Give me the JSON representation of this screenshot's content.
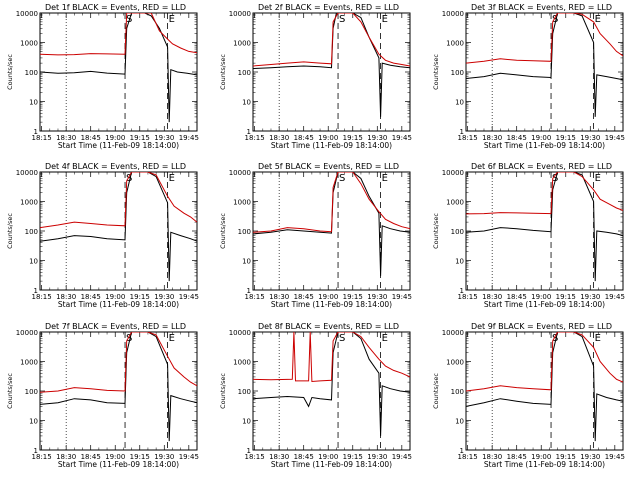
{
  "chart_data": [
    {
      "type": "line",
      "title": "Det 1f BLACK = Events, RED = LLD",
      "xlabel": "Start Time (11-Feb-09 18:14:00)",
      "ylabel": "Counts/sec",
      "x_ticks": [
        "18:15",
        "18:30",
        "18:45",
        "19:00",
        "19:15",
        "19:30",
        "19:45"
      ],
      "y_ticks": [
        "1",
        "10",
        "100",
        "1000",
        "10000"
      ],
      "y_scale": "log",
      "ylim": [
        1,
        10000
      ],
      "markers": [
        "S",
        "E"
      ],
      "series": [
        {
          "name": "Events",
          "color": "#000000",
          "x": [
            "18:14",
            "18:25",
            "18:35",
            "18:45",
            "18:55",
            "19:06",
            "19:07",
            "19:10",
            "19:13",
            "19:18",
            "19:22",
            "19:27",
            "19:32",
            "19:33",
            "19:34",
            "19:38",
            "19:44",
            "19:50"
          ],
          "y": [
            100,
            90,
            95,
            105,
            92,
            85,
            3000,
            10000,
            10000,
            10000,
            8000,
            3000,
            700,
            2,
            120,
            100,
            90,
            80
          ]
        },
        {
          "name": "LLD",
          "color": "#cc0000",
          "x": [
            "18:14",
            "18:25",
            "18:35",
            "18:45",
            "18:55",
            "19:06",
            "19:07",
            "19:10",
            "19:13",
            "19:18",
            "19:22",
            "19:27",
            "19:32",
            "19:35",
            "19:40",
            "19:45",
            "19:50"
          ],
          "y": [
            400,
            380,
            390,
            420,
            410,
            400,
            10000,
            10000,
            10000,
            10000,
            10000,
            2500,
            1300,
            900,
            650,
            500,
            450
          ]
        }
      ]
    },
    {
      "type": "line",
      "title": "Det 2f BLACK = Events, RED = LLD",
      "xlabel": "Start Time (11-Feb-09 18:14:00)",
      "ylabel": "Counts/sec",
      "x_ticks": [
        "18:15",
        "18:30",
        "18:45",
        "19:00",
        "19:15",
        "19:30",
        "19:45"
      ],
      "y_ticks": [
        "1",
        "10",
        "100",
        "1000",
        "10000"
      ],
      "y_scale": "log",
      "ylim": [
        1,
        10000
      ],
      "markers": [
        "S",
        "E"
      ],
      "series": [
        {
          "name": "Events",
          "color": "#000000",
          "x": [
            "18:14",
            "18:25",
            "18:35",
            "18:45",
            "18:55",
            "19:02",
            "19:03",
            "19:05",
            "19:10",
            "19:15",
            "19:20",
            "19:25",
            "19:31",
            "19:32",
            "19:33",
            "19:38",
            "19:44",
            "19:50"
          ],
          "y": [
            130,
            140,
            150,
            160,
            150,
            140,
            3000,
            10000,
            10000,
            10000,
            7000,
            1500,
            300,
            3,
            200,
            170,
            150,
            140
          ]
        },
        {
          "name": "LLD",
          "color": "#cc0000",
          "x": [
            "18:14",
            "18:25",
            "18:35",
            "18:45",
            "18:55",
            "19:02",
            "19:03",
            "19:06",
            "19:10",
            "19:15",
            "19:20",
            "19:25",
            "19:31",
            "19:35",
            "19:40",
            "19:45",
            "19:50"
          ],
          "y": [
            160,
            180,
            200,
            220,
            200,
            190,
            5000,
            10000,
            10000,
            10000,
            5000,
            1500,
            400,
            250,
            200,
            180,
            160
          ]
        }
      ]
    },
    {
      "type": "line",
      "title": "Det 3f BLACK = Events, RED = LLD",
      "xlabel": "Start Time (11-Feb-09 18:14:00)",
      "ylabel": "Counts/sec",
      "x_ticks": [
        "18:15",
        "18:30",
        "18:45",
        "19:00",
        "19:15",
        "19:30",
        "19:45"
      ],
      "y_ticks": [
        "1",
        "10",
        "100",
        "1000",
        "10000"
      ],
      "y_scale": "log",
      "ylim": [
        1,
        10000
      ],
      "markers": [
        "S",
        "E"
      ],
      "series": [
        {
          "name": "Events",
          "color": "#000000",
          "x": [
            "18:14",
            "18:25",
            "18:35",
            "18:45",
            "18:55",
            "19:06",
            "19:07",
            "19:10",
            "19:15",
            "19:20",
            "19:25",
            "19:32",
            "19:33",
            "19:34",
            "19:40",
            "19:46",
            "19:50"
          ],
          "y": [
            60,
            70,
            90,
            80,
            70,
            65,
            2000,
            10000,
            10000,
            10000,
            8000,
            1000,
            3,
            80,
            70,
            60,
            55
          ]
        },
        {
          "name": "LLD",
          "color": "#cc0000",
          "x": [
            "18:14",
            "18:25",
            "18:35",
            "18:45",
            "18:55",
            "19:06",
            "19:07",
            "19:10",
            "19:15",
            "19:20",
            "19:25",
            "19:32",
            "19:36",
            "19:42",
            "19:46",
            "19:50"
          ],
          "y": [
            200,
            230,
            280,
            250,
            240,
            230,
            5000,
            10000,
            10000,
            10000,
            9000,
            5000,
            2000,
            900,
            500,
            350
          ]
        }
      ]
    },
    {
      "type": "line",
      "title": "Det 4f BLACK = Events, RED = LLD",
      "xlabel": "Start Time (11-Feb-09 18:14:00)",
      "ylabel": "Counts/sec",
      "x_ticks": [
        "18:15",
        "18:30",
        "18:45",
        "19:00",
        "19:15",
        "19:30",
        "19:45"
      ],
      "y_ticks": [
        "1",
        "10",
        "100",
        "1000",
        "10000"
      ],
      "y_scale": "log",
      "ylim": [
        1,
        10000
      ],
      "markers": [
        "S",
        "E"
      ],
      "series": [
        {
          "name": "Events",
          "color": "#000000",
          "x": [
            "18:14",
            "18:25",
            "18:35",
            "18:45",
            "18:55",
            "19:06",
            "19:07",
            "19:10",
            "19:15",
            "19:20",
            "19:25",
            "19:32",
            "19:33",
            "19:34",
            "19:40",
            "19:46",
            "19:50"
          ],
          "y": [
            45,
            55,
            70,
            65,
            55,
            50,
            2000,
            10000,
            10000,
            10000,
            7000,
            900,
            2,
            90,
            70,
            55,
            45
          ]
        },
        {
          "name": "LLD",
          "color": "#cc0000",
          "x": [
            "18:14",
            "18:25",
            "18:35",
            "18:45",
            "18:55",
            "19:06",
            "19:07",
            "19:10",
            "19:15",
            "19:20",
            "19:25",
            "19:32",
            "19:36",
            "19:42",
            "19:46",
            "19:50"
          ],
          "y": [
            130,
            160,
            200,
            180,
            160,
            150,
            5000,
            10000,
            10000,
            10000,
            8000,
            1500,
            700,
            400,
            300,
            200
          ]
        }
      ]
    },
    {
      "type": "line",
      "title": "Det 5f BLACK = Events, RED = LLD",
      "xlabel": "Start Time (11-Feb-09 18:14:00)",
      "ylabel": "Counts/sec",
      "x_ticks": [
        "18:15",
        "18:30",
        "18:45",
        "19:00",
        "19:15",
        "19:30",
        "19:45"
      ],
      "y_ticks": [
        "1",
        "10",
        "100",
        "1000",
        "10000"
      ],
      "y_scale": "log",
      "ylim": [
        1,
        10000
      ],
      "markers": [
        "S",
        "E"
      ],
      "series": [
        {
          "name": "Events",
          "color": "#000000",
          "x": [
            "18:14",
            "18:25",
            "18:35",
            "18:45",
            "18:55",
            "19:02",
            "19:03",
            "19:06",
            "19:10",
            "19:15",
            "19:20",
            "19:25",
            "19:31",
            "19:32",
            "19:33",
            "19:38",
            "19:44",
            "19:50"
          ],
          "y": [
            80,
            90,
            110,
            100,
            90,
            85,
            2000,
            10000,
            10000,
            10000,
            6000,
            1500,
            400,
            3,
            150,
            120,
            100,
            90
          ]
        },
        {
          "name": "LLD",
          "color": "#cc0000",
          "x": [
            "18:14",
            "18:25",
            "18:35",
            "18:45",
            "18:55",
            "19:02",
            "19:03",
            "19:06",
            "19:10",
            "19:15",
            "19:20",
            "19:25",
            "19:31",
            "19:35",
            "19:40",
            "19:45",
            "19:50"
          ],
          "y": [
            90,
            100,
            130,
            120,
            100,
            95,
            3000,
            10000,
            10000,
            10000,
            4000,
            1200,
            450,
            250,
            180,
            140,
            120
          ]
        }
      ]
    },
    {
      "type": "line",
      "title": "Det 6f BLACK = Events, RED = LLD",
      "xlabel": "Start Time (11-Feb-09 18:14:00)",
      "ylabel": "Counts/sec",
      "x_ticks": [
        "18:15",
        "18:30",
        "18:45",
        "19:00",
        "19:15",
        "19:30",
        "19:45"
      ],
      "y_ticks": [
        "1",
        "10",
        "100",
        "1000",
        "10000"
      ],
      "y_scale": "log",
      "ylim": [
        1,
        10000
      ],
      "markers": [
        "S",
        "E"
      ],
      "series": [
        {
          "name": "Events",
          "color": "#000000",
          "x": [
            "18:14",
            "18:25",
            "18:35",
            "18:45",
            "18:55",
            "19:06",
            "19:07",
            "19:10",
            "19:15",
            "19:20",
            "19:25",
            "19:32",
            "19:33",
            "19:34",
            "19:40",
            "19:46",
            "19:50"
          ],
          "y": [
            90,
            100,
            130,
            120,
            105,
            95,
            2500,
            10000,
            10000,
            10000,
            8000,
            1000,
            2,
            100,
            90,
            80,
            70
          ]
        },
        {
          "name": "LLD",
          "color": "#cc0000",
          "x": [
            "18:14",
            "18:25",
            "18:35",
            "18:45",
            "18:55",
            "19:06",
            "19:07",
            "19:10",
            "19:15",
            "19:20",
            "19:25",
            "19:32",
            "19:36",
            "19:42",
            "19:46",
            "19:50"
          ],
          "y": [
            380,
            390,
            420,
            410,
            400,
            390,
            6000,
            10000,
            10000,
            10000,
            7000,
            2500,
            1200,
            800,
            600,
            500
          ]
        }
      ]
    },
    {
      "type": "line",
      "title": "Det 7f BLACK = Events, RED = LLD",
      "xlabel": "Start Time (11-Feb-09 18:14:00)",
      "ylabel": "Counts/sec",
      "x_ticks": [
        "18:15",
        "18:30",
        "18:45",
        "19:00",
        "19:15",
        "19:30",
        "19:45"
      ],
      "y_ticks": [
        "1",
        "10",
        "100",
        "1000",
        "10000"
      ],
      "y_scale": "log",
      "ylim": [
        1,
        10000
      ],
      "markers": [
        "S",
        "E"
      ],
      "series": [
        {
          "name": "Events",
          "color": "#000000",
          "x": [
            "18:14",
            "18:25",
            "18:35",
            "18:45",
            "18:55",
            "19:06",
            "19:07",
            "19:10",
            "19:15",
            "19:20",
            "19:25",
            "19:32",
            "19:33",
            "19:34",
            "19:40",
            "19:46",
            "19:50"
          ],
          "y": [
            35,
            40,
            55,
            50,
            40,
            38,
            2000,
            10000,
            10000,
            10000,
            7000,
            800,
            2,
            70,
            55,
            45,
            40
          ]
        },
        {
          "name": "LLD",
          "color": "#cc0000",
          "x": [
            "18:14",
            "18:25",
            "18:35",
            "18:45",
            "18:55",
            "19:06",
            "19:07",
            "19:10",
            "19:15",
            "19:20",
            "19:25",
            "19:32",
            "19:36",
            "19:42",
            "19:46",
            "19:50"
          ],
          "y": [
            90,
            100,
            130,
            120,
            105,
            100,
            5000,
            10000,
            10000,
            10000,
            8000,
            1500,
            600,
            300,
            200,
            150
          ]
        }
      ]
    },
    {
      "type": "line",
      "title": "Det 8f BLACK = Events, RED = LLD",
      "xlabel": "Start Time (11-Feb-09 18:14:00)",
      "ylabel": "Counts/sec",
      "x_ticks": [
        "18:15",
        "18:30",
        "18:45",
        "19:00",
        "19:15",
        "19:30",
        "19:45"
      ],
      "y_ticks": [
        "1",
        "10",
        "100",
        "1000",
        "10000"
      ],
      "y_scale": "log",
      "ylim": [
        1,
        10000
      ],
      "markers": [
        "S",
        "E"
      ],
      "series": [
        {
          "name": "Events",
          "color": "#000000",
          "x": [
            "18:14",
            "18:25",
            "18:35",
            "18:45",
            "18:48",
            "18:50",
            "18:55",
            "19:02",
            "19:03",
            "19:06",
            "19:10",
            "19:15",
            "19:20",
            "19:25",
            "19:31",
            "19:32",
            "19:33",
            "19:38",
            "19:44",
            "19:50"
          ],
          "y": [
            55,
            60,
            65,
            60,
            30,
            60,
            55,
            50,
            2000,
            10000,
            10000,
            10000,
            6000,
            1200,
            400,
            3,
            150,
            120,
            100,
            90
          ]
        },
        {
          "name": "LLD",
          "color": "#cc0000",
          "x": [
            "18:14",
            "18:25",
            "18:38",
            "18:39",
            "18:40",
            "18:48",
            "18:49",
            "18:50",
            "18:55",
            "19:02",
            "19:03",
            "19:06",
            "19:10",
            "19:15",
            "19:20",
            "19:25",
            "19:31",
            "19:35",
            "19:40",
            "19:45",
            "19:50"
          ],
          "y": [
            250,
            240,
            250,
            10000,
            220,
            220,
            10000,
            210,
            220,
            230,
            5000,
            10000,
            10000,
            10000,
            7000,
            3000,
            1200,
            700,
            500,
            400,
            300
          ]
        }
      ]
    },
    {
      "type": "line",
      "title": "Det 9f BLACK = Events, RED = LLD",
      "xlabel": "Start Time (11-Feb-09 18:14:00)",
      "ylabel": "Counts/sec",
      "x_ticks": [
        "18:15",
        "18:30",
        "18:45",
        "19:00",
        "19:15",
        "19:30",
        "19:45"
      ],
      "y_ticks": [
        "1",
        "10",
        "100",
        "1000",
        "10000"
      ],
      "y_scale": "log",
      "ylim": [
        1,
        10000
      ],
      "markers": [
        "S",
        "E"
      ],
      "series": [
        {
          "name": "Events",
          "color": "#000000",
          "x": [
            "18:14",
            "18:25",
            "18:35",
            "18:45",
            "18:55",
            "19:06",
            "19:07",
            "19:10",
            "19:15",
            "19:20",
            "19:25",
            "19:32",
            "19:33",
            "19:34",
            "19:40",
            "19:46",
            "19:50"
          ],
          "y": [
            30,
            40,
            55,
            45,
            38,
            35,
            2000,
            10000,
            10000,
            10000,
            7000,
            700,
            2,
            80,
            60,
            50,
            45
          ]
        },
        {
          "name": "LLD",
          "color": "#cc0000",
          "x": [
            "18:14",
            "18:25",
            "18:35",
            "18:45",
            "18:55",
            "19:06",
            "19:07",
            "19:10",
            "19:15",
            "19:20",
            "19:25",
            "19:32",
            "19:36",
            "19:42",
            "19:46",
            "19:50"
          ],
          "y": [
            100,
            120,
            150,
            130,
            120,
            110,
            5000,
            10000,
            10000,
            10000,
            8000,
            3000,
            1000,
            400,
            250,
            200
          ]
        }
      ]
    }
  ]
}
